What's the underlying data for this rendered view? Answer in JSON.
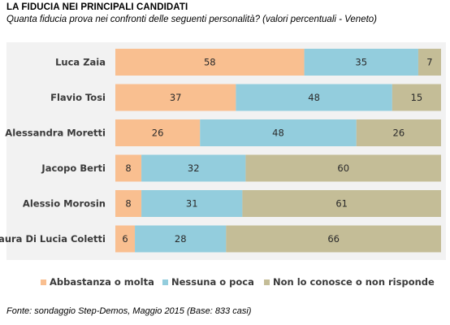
{
  "header": {
    "title": "LA FIDUCIA NEI PRINCIPALI CANDIDATI",
    "subtitle": "Quanta fiducia prova nei confronti delle seguenti personalità? (valori percentuali - Veneto)"
  },
  "footer": {
    "source": "Fonte: sondaggio Step-Demos, Maggio 2015 (Base: 833 casi)"
  },
  "colors": {
    "abbastanza": "#F9BF90",
    "nessuna": "#93CDDD",
    "non_conosce": "#C4BD97",
    "background_band": "#F2F2F2"
  },
  "chart_data": {
    "type": "bar",
    "orientation": "horizontal",
    "stacked": true,
    "title": "LA FIDUCIA NEI PRINCIPALI CANDIDATI",
    "subtitle": "Quanta fiducia prova nei confronti delle seguenti personalità? (valori percentuali - Veneto)",
    "categories": [
      "Luca Zaia",
      "Flavio Tosi",
      "Alessandra Moretti",
      "Jacopo Berti",
      "Alessio Morosin",
      "Laura Di Lucia Coletti"
    ],
    "series": [
      {
        "name": "Abbastanza o molta",
        "color": "#F9BF90",
        "values": [
          58,
          37,
          26,
          8,
          8,
          6
        ]
      },
      {
        "name": "Nessuna o poca",
        "color": "#93CDDD",
        "values": [
          35,
          48,
          48,
          32,
          31,
          28
        ]
      },
      {
        "name": "Non lo conosce o non risponde",
        "color": "#C4BD97",
        "values": [
          7,
          15,
          26,
          60,
          61,
          66
        ]
      }
    ],
    "xlim": [
      0,
      100
    ],
    "grid": false,
    "legend_position": "bottom"
  }
}
